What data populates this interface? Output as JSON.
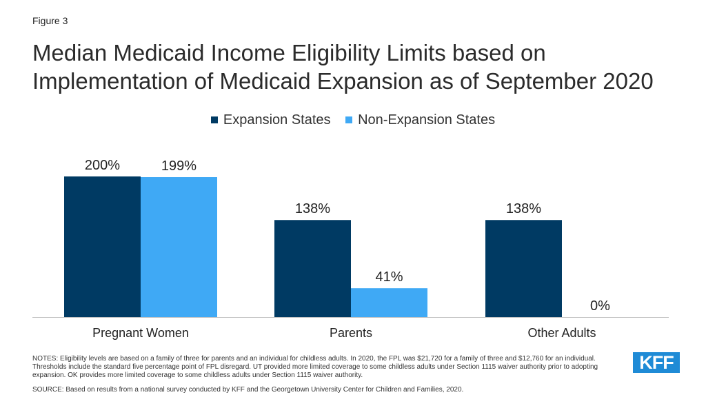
{
  "figure_label": "Figure 3",
  "title": "Median Medicaid Income Eligibility Limits based on Implementation of Medicaid Expansion as of September 2020",
  "chart_data": {
    "type": "bar",
    "categories": [
      "Pregnant Women",
      "Parents",
      "Other Adults"
    ],
    "series": [
      {
        "name": "Expansion States",
        "values": [
          200,
          138,
          138
        ],
        "labels": [
          "200%",
          "138%",
          "138%"
        ],
        "color": "#003a63"
      },
      {
        "name": "Non-Expansion States",
        "values": [
          199,
          41,
          0
        ],
        "labels": [
          "199%",
          "41%",
          "0%"
        ],
        "color": "#3fa9f5"
      }
    ],
    "ylim": [
      0,
      200
    ],
    "legend": "top-center",
    "grid": false
  },
  "notes": "NOTES: Eligibility levels are based on a family of three for parents and an individual for childless adults. In 2020, the FPL was $21,720 for a family of three and $12,760 for an individual. Thresholds include the standard five percentage point of FPL disregard. UT provided more limited coverage to some childless adults under Section 1115 waiver authority prior to adopting expansion. OK provides more limited coverage to some childless adults under Section 1115 waiver authority.",
  "source": "SOURCE: Based on results from a national survey conducted by KFF and the Georgetown University Center for Children and Families, 2020.",
  "logo_text": "KFF"
}
